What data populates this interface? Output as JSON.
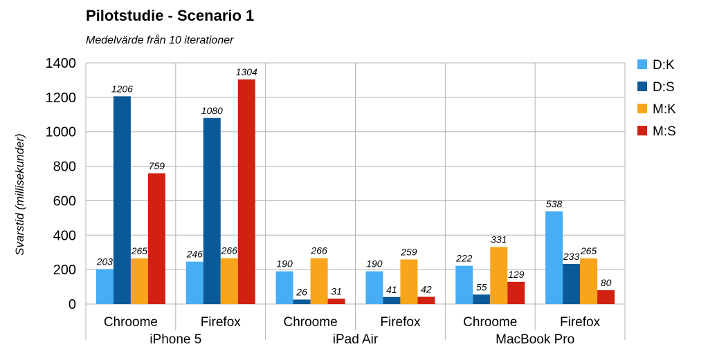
{
  "chart_data": {
    "type": "bar",
    "title": "Pilotstudie - Scenario 1",
    "subtitle": "Medelvärde från 10 iterationer",
    "ylabel": "Svarstid  (millisekunder)",
    "xlabel": "",
    "ylim": [
      0,
      1400
    ],
    "yticks": [
      0,
      200,
      400,
      600,
      800,
      1000,
      1200,
      1400
    ],
    "grid": true,
    "legend_position": "right",
    "groups": [
      {
        "name": "iPhone 5",
        "categories": [
          "Chroome",
          "Firefox"
        ]
      },
      {
        "name": "iPad Air",
        "categories": [
          "Chroome",
          "Firefox"
        ]
      },
      {
        "name": "MacBook Pro",
        "categories": [
          "Chroome",
          "Firefox"
        ]
      }
    ],
    "categories": [
      "Chroome",
      "Firefox",
      "Chroome",
      "Firefox",
      "Chroome",
      "Firefox"
    ],
    "series": [
      {
        "name": "D:K",
        "color": "#47adf5",
        "values": [
          203,
          246,
          190,
          190,
          222,
          538
        ]
      },
      {
        "name": "D:S",
        "color": "#0a5a9a",
        "values": [
          1206,
          1080,
          26,
          41,
          55,
          233
        ]
      },
      {
        "name": "M:K",
        "color": "#f8a51c",
        "values": [
          265,
          266,
          266,
          259,
          331,
          265
        ]
      },
      {
        "name": "M:S",
        "color": "#d22110",
        "values": [
          759,
          1304,
          31,
          42,
          129,
          80
        ]
      }
    ]
  }
}
